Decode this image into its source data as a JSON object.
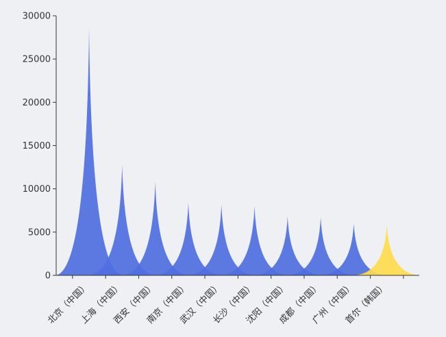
{
  "chart_data": {
    "type": "area",
    "title": "",
    "xlabel": "",
    "ylabel": "",
    "ylim": [
      0,
      30000
    ],
    "yticks": [
      0,
      5000,
      10000,
      15000,
      20000,
      25000,
      30000
    ],
    "grid": false,
    "legend": "none",
    "categories": [
      "北京（中国）",
      "上海（中国）",
      "西安（中国）",
      "南京（中国）",
      "武汉（中国）",
      "长沙（中国）",
      "沈阳（中国）",
      "成都（中国）",
      "广州（中国）",
      "首尔（韩国）"
    ],
    "values": [
      28500,
      12800,
      10800,
      8400,
      8200,
      8000,
      6800,
      6700,
      6000,
      5800
    ],
    "colors": [
      "#4f6fe0",
      "#4f6fe0",
      "#4f6fe0",
      "#4f6fe0",
      "#4f6fe0",
      "#4f6fe0",
      "#4f6fe0",
      "#4f6fe0",
      "#4f6fe0",
      "#ffdb4d"
    ]
  }
}
